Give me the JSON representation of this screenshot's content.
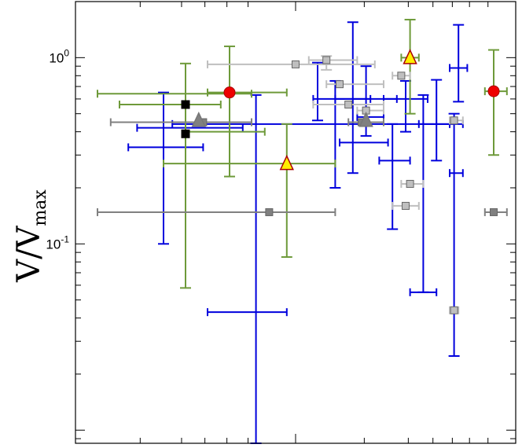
{
  "chart_data": {
    "type": "scatter",
    "yscale": "log",
    "ylim": [
      0.0085,
      2.0
    ],
    "xlim": [
      0,
      1
    ],
    "grid": false,
    "title": "",
    "xlabel": "",
    "ylabel_main": "V/V",
    "ylabel_sub": "max",
    "y_ticks": [
      {
        "base": "10",
        "exp": "0",
        "value": 1
      },
      {
        "base": "10",
        "exp": "-1",
        "value": 0.1
      }
    ],
    "colors": {
      "blue": "#0000dd",
      "green": "#6e9a3a",
      "gray": "#808080",
      "lightgray": "#bfbfbf",
      "red": "#ee0000",
      "yellow": "#ffee00",
      "black": "#000000"
    },
    "series": [
      {
        "color": "blue",
        "marker": "errorbar",
        "points": [
          {
            "x": 0.41,
            "y": 0.043,
            "xlo": 0.3,
            "xhi": 0.48,
            "ylo": 0.0085,
            "yhi": 0.63
          },
          {
            "x": 0.55,
            "y": 0.44,
            "xlo": 0.22,
            "xhi": 0.88,
            "ylo": 0.44,
            "yhi": 0.44
          },
          {
            "x": 0.55,
            "y": 0.6,
            "xlo": 0.54,
            "xhi": 0.73,
            "ylo": 0.46,
            "yhi": 0.94
          },
          {
            "x": 0.59,
            "y": 0.35,
            "xlo": 0.6,
            "xhi": 0.71,
            "ylo": 0.2,
            "yhi": 0.75
          },
          {
            "x": 0.63,
            "y": 0.6,
            "xlo": 0.59,
            "xhi": 0.67,
            "ylo": 0.24,
            "yhi": 1.55
          },
          {
            "x": 0.66,
            "y": 0.48,
            "xlo": 0.64,
            "xhi": 0.7,
            "ylo": 0.38,
            "yhi": 0.9
          },
          {
            "x": 0.72,
            "y": 0.28,
            "xlo": 0.69,
            "xhi": 0.76,
            "ylo": 0.12,
            "yhi": 0.44
          },
          {
            "x": 0.75,
            "y": 0.6,
            "xlo": 0.7,
            "xhi": 0.8,
            "ylo": 0.4,
            "yhi": 0.75
          },
          {
            "x": 0.79,
            "y": 0.055,
            "xlo": 0.76,
            "xhi": 0.82,
            "ylo": 0.055,
            "yhi": 0.63
          },
          {
            "x": 0.82,
            "y": 0.44,
            "xlo": 0.78,
            "xhi": 0.85,
            "ylo": 0.28,
            "yhi": 0.76
          },
          {
            "x": 0.86,
            "y": 0.24,
            "xlo": 0.85,
            "xhi": 0.88,
            "ylo": 0.025,
            "yhi": 0.5
          },
          {
            "x": 0.87,
            "y": 0.88,
            "xlo": 0.85,
            "xhi": 0.89,
            "ylo": 0.58,
            "yhi": 1.5
          },
          {
            "x": 0.22,
            "y": 0.33,
            "xlo": 0.12,
            "xhi": 0.29,
            "ylo": 0.33,
            "yhi": 0.33
          },
          {
            "x": 0.2,
            "y": 0.42,
            "xlo": 0.14,
            "xhi": 0.38,
            "ylo": 0.1,
            "yhi": 0.65
          }
        ]
      },
      {
        "color": "green",
        "marker": "errorbar",
        "points": [
          {
            "x": 0.2,
            "y": 0.64,
            "xlo": 0.05,
            "xhi": 0.4,
            "ylo": 0.64,
            "yhi": 0.64
          },
          {
            "x": 0.2,
            "y": 0.56,
            "xlo": 0.1,
            "xhi": 0.33,
            "ylo": 0.56,
            "yhi": 0.56
          },
          {
            "x": 0.25,
            "y": 0.46,
            "xlo": 0.25,
            "xhi": 0.25,
            "ylo": 0.058,
            "yhi": 0.93
          },
          {
            "x": 0.25,
            "y": 0.4,
            "xlo": 0.25,
            "xhi": 0.43,
            "ylo": 0.4,
            "yhi": 0.4
          },
          {
            "x": 0.35,
            "y": 0.65,
            "xlo": 0.3,
            "xhi": 0.48,
            "ylo": 0.23,
            "yhi": 1.15
          },
          {
            "x": 0.48,
            "y": 0.27,
            "xlo": 0.2,
            "xhi": 0.59,
            "ylo": 0.085,
            "yhi": 0.44
          },
          {
            "x": 0.76,
            "y": 1.0,
            "xlo": 0.74,
            "xhi": 0.78,
            "ylo": 0.5,
            "yhi": 1.6
          },
          {
            "x": 0.95,
            "y": 0.66,
            "xlo": 0.93,
            "xhi": 0.98,
            "ylo": 0.3,
            "yhi": 1.1
          }
        ]
      },
      {
        "color": "gray",
        "marker": "square",
        "points": [
          {
            "x": 0.29,
            "y": 0.45,
            "xlo": 0.08,
            "xhi": 0.4,
            "ylo": 0.45,
            "yhi": 0.45
          },
          {
            "x": 0.44,
            "y": 0.148,
            "xlo": 0.05,
            "xhi": 0.59,
            "ylo": 0.148,
            "yhi": 0.148
          },
          {
            "x": 0.65,
            "y": 0.45,
            "xlo": 0.62,
            "xhi": 0.7,
            "ylo": 0.45,
            "yhi": 0.45
          },
          {
            "x": 0.95,
            "y": 0.148,
            "xlo": 0.93,
            "xhi": 0.98,
            "ylo": 0.148,
            "yhi": 0.148
          }
        ]
      },
      {
        "color": "lightgray",
        "marker": "square",
        "points": [
          {
            "x": 0.5,
            "y": 0.92,
            "xlo": 0.3,
            "xhi": 0.68,
            "ylo": 0.92,
            "yhi": 0.92
          },
          {
            "x": 0.57,
            "y": 0.97,
            "xlo": 0.53,
            "xhi": 0.64,
            "ylo": 0.86,
            "yhi": 1.02
          },
          {
            "x": 0.6,
            "y": 0.72,
            "xlo": 0.57,
            "xhi": 0.7,
            "ylo": 0.72,
            "yhi": 0.72
          },
          {
            "x": 0.62,
            "y": 0.56,
            "xlo": 0.54,
            "xhi": 0.7,
            "ylo": 0.56,
            "yhi": 0.56
          },
          {
            "x": 0.66,
            "y": 0.52,
            "xlo": 0.64,
            "xhi": 0.7,
            "ylo": 0.52,
            "yhi": 0.52
          },
          {
            "x": 0.74,
            "y": 0.8,
            "xlo": 0.72,
            "xhi": 0.76,
            "ylo": 0.8,
            "yhi": 0.8
          },
          {
            "x": 0.76,
            "y": 0.21,
            "xlo": 0.74,
            "xhi": 0.79,
            "ylo": 0.21,
            "yhi": 0.21
          },
          {
            "x": 0.75,
            "y": 0.16,
            "xlo": 0.72,
            "xhi": 0.78,
            "ylo": 0.16,
            "yhi": 0.16
          },
          {
            "x": 0.86,
            "y": 0.46,
            "xlo": 0.85,
            "xhi": 0.88,
            "ylo": 0.46,
            "yhi": 0.46
          },
          {
            "x": 0.86,
            "y": 0.044,
            "xlo": 0.85,
            "xhi": 0.87,
            "ylo": 0.044,
            "yhi": 0.044
          }
        ]
      },
      {
        "color": "gray",
        "marker": "triangle",
        "points": [
          {
            "x": 0.28,
            "y": 0.46
          },
          {
            "x": 0.66,
            "y": 0.46
          }
        ]
      },
      {
        "color": "black",
        "marker": "square",
        "points": [
          {
            "x": 0.25,
            "y": 0.56
          },
          {
            "x": 0.25,
            "y": 0.39
          }
        ]
      },
      {
        "color": "red",
        "marker": "circle",
        "points": [
          {
            "x": 0.35,
            "y": 0.65
          },
          {
            "x": 0.95,
            "y": 0.66
          }
        ]
      },
      {
        "color": "yellow",
        "marker": "triangle",
        "points": [
          {
            "x": 0.48,
            "y": 0.27
          },
          {
            "x": 0.76,
            "y": 1.0
          }
        ]
      }
    ]
  }
}
